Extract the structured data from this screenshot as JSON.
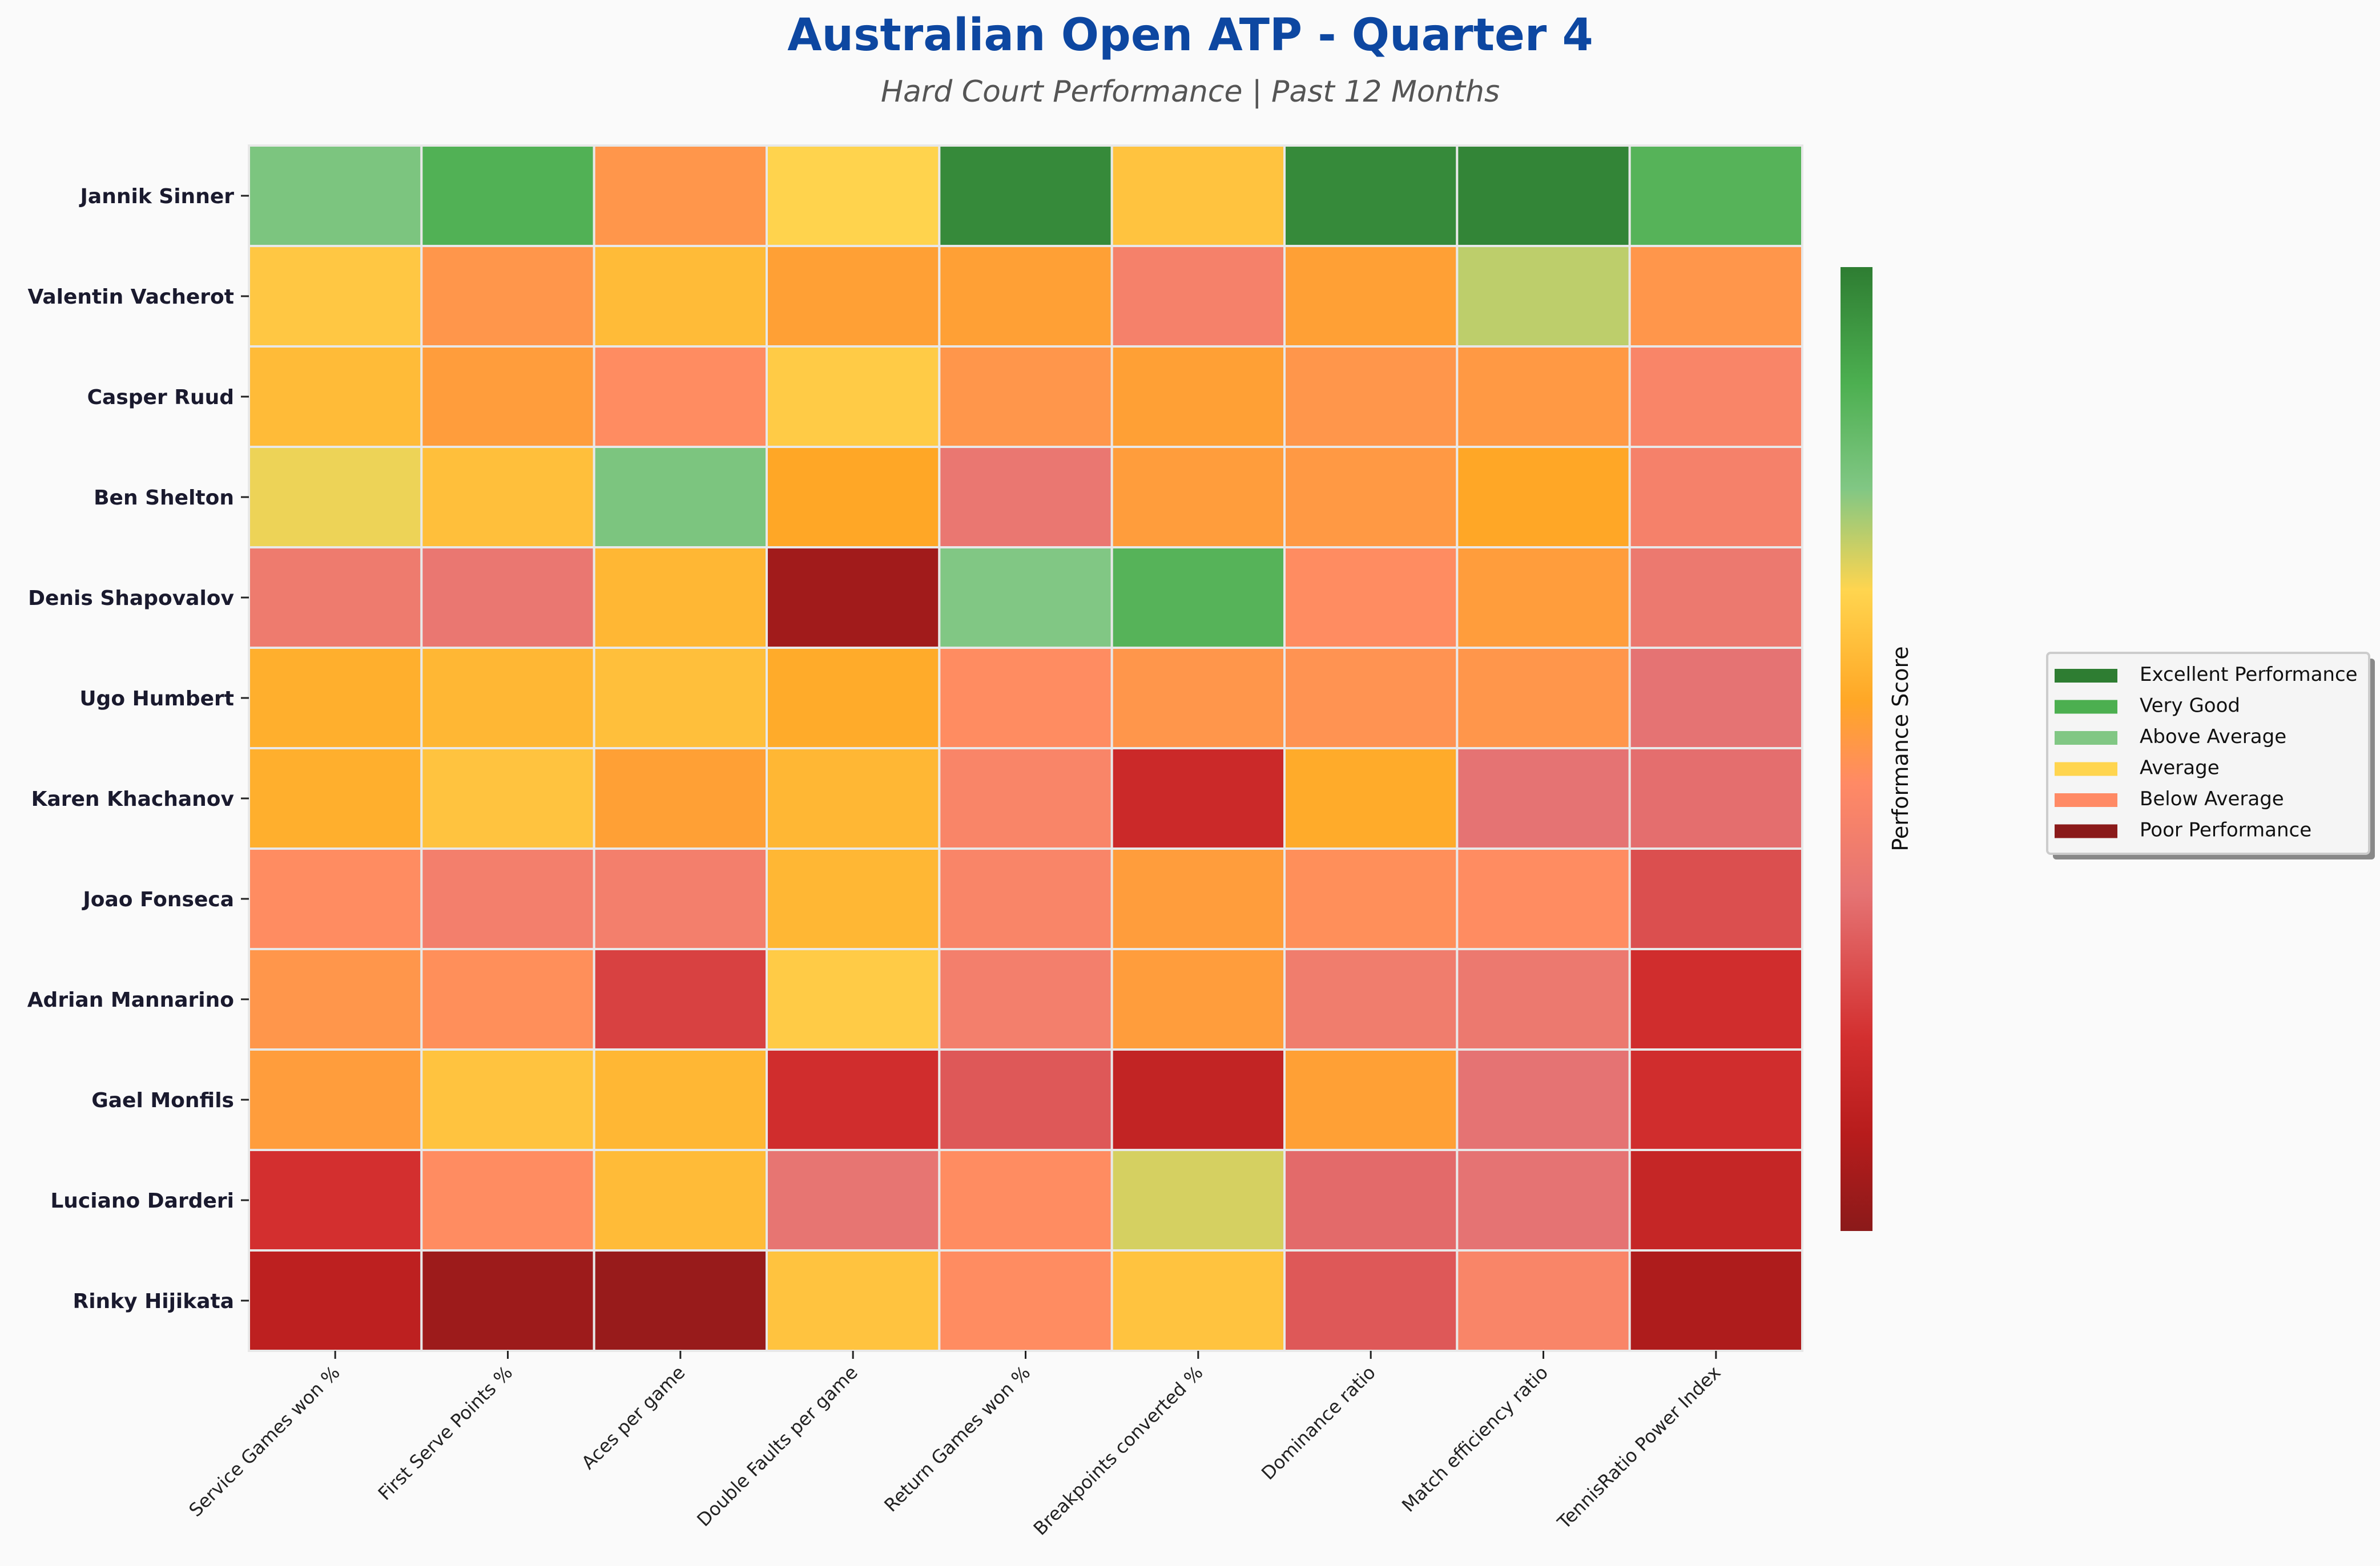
{
  "chart_data": {
    "type": "heatmap",
    "title": "Australian Open ATP - Quarter 4",
    "subtitle": "Hard Court Performance | Past 12 Months",
    "colorbar_label": "Performance Score",
    "rows": [
      "Jannik Sinner",
      "Valentin Vacherot",
      "Casper Ruud",
      "Ben Shelton",
      "Denis Shapovalov",
      "Ugo Humbert",
      "Karen Khachanov",
      "Joao Fonseca",
      "Adrian Mannarino",
      "Gael Monfils",
      "Luciano Darderi",
      "Rinky Hijikata"
    ],
    "columns": [
      "Service Games won %",
      "First Serve Points %",
      "Aces per game",
      "Double Faults per game",
      "Return Games won %",
      "Breakpoints converted %",
      "Dominance ratio",
      "Match efficiency ratio",
      "TennisRatio Power Index"
    ],
    "values": [
      [
        0.78,
        0.87,
        0.5,
        0.66,
        0.97,
        0.62,
        0.97,
        0.98,
        0.86
      ],
      [
        0.63,
        0.5,
        0.6,
        0.53,
        0.53,
        0.42,
        0.53,
        0.72,
        0.5
      ],
      [
        0.6,
        0.52,
        0.47,
        0.64,
        0.5,
        0.53,
        0.5,
        0.51,
        0.44
      ],
      [
        0.68,
        0.61,
        0.78,
        0.55,
        0.37,
        0.52,
        0.51,
        0.55,
        0.42
      ],
      [
        0.39,
        0.37,
        0.59,
        0.05,
        0.77,
        0.86,
        0.47,
        0.52,
        0.38
      ],
      [
        0.57,
        0.59,
        0.61,
        0.56,
        0.47,
        0.5,
        0.49,
        0.5,
        0.35
      ],
      [
        0.57,
        0.62,
        0.53,
        0.59,
        0.44,
        0.17,
        0.56,
        0.35,
        0.34
      ],
      [
        0.47,
        0.41,
        0.41,
        0.59,
        0.44,
        0.52,
        0.48,
        0.47,
        0.27
      ],
      [
        0.5,
        0.48,
        0.24,
        0.64,
        0.41,
        0.52,
        0.4,
        0.38,
        0.19
      ],
      [
        0.52,
        0.62,
        0.59,
        0.19,
        0.29,
        0.14,
        0.53,
        0.35,
        0.19
      ],
      [
        0.2,
        0.47,
        0.6,
        0.36,
        0.47,
        0.7,
        0.33,
        0.35,
        0.15
      ],
      [
        0.12,
        0.04,
        0.03,
        0.62,
        0.47,
        0.62,
        0.29,
        0.44,
        0.08
      ]
    ],
    "value_range": [
      0,
      1
    ],
    "colormap": [
      {
        "v": 0.0,
        "c": "#8b1a1a"
      },
      {
        "v": 0.1,
        "c": "#b71c1c"
      },
      {
        "v": 0.2,
        "c": "#d32f2f"
      },
      {
        "v": 0.35,
        "c": "#e57373"
      },
      {
        "v": 0.465,
        "c": "#ff8a65"
      },
      {
        "v": 0.55,
        "c": "#ffa726"
      },
      {
        "v": 0.665,
        "c": "#ffd54f"
      },
      {
        "v": 0.77,
        "c": "#81c784"
      },
      {
        "v": 0.88,
        "c": "#4caf50"
      },
      {
        "v": 1.0,
        "c": "#2e7d32"
      }
    ],
    "legend": {
      "placement": "right",
      "items": [
        {
          "label": "Excellent Performance",
          "color": "#2e7d32"
        },
        {
          "label": "Very Good",
          "color": "#4caf50"
        },
        {
          "label": "Above Average",
          "color": "#81c784"
        },
        {
          "label": "Average",
          "color": "#ffd54f"
        },
        {
          "label": "Below Average",
          "color": "#ff8a65"
        },
        {
          "label": "Poor Performance",
          "color": "#8b1a1a"
        }
      ]
    },
    "title_color": "#0d47a1"
  }
}
